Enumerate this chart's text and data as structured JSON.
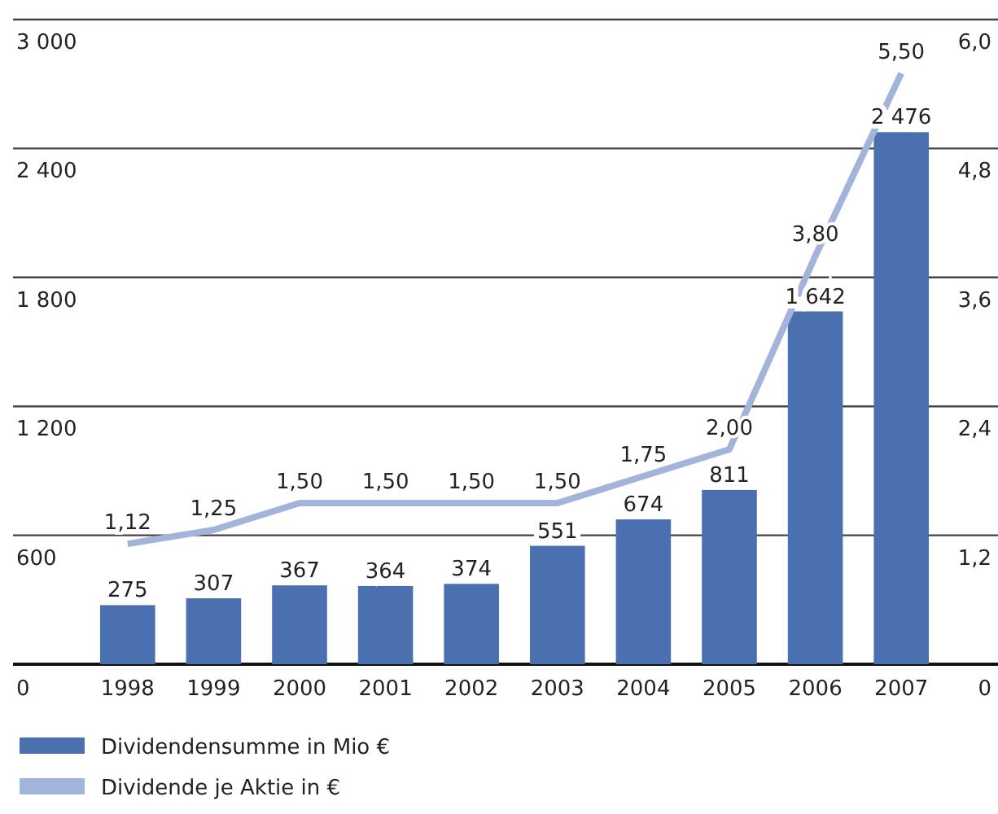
{
  "chart_data": {
    "type": "bar",
    "categories": [
      "1998",
      "1999",
      "2000",
      "2001",
      "2002",
      "2003",
      "2004",
      "2005",
      "2006",
      "2007"
    ],
    "series": [
      {
        "name": "Dividendensumme in Mio €",
        "color": "#4a70b0",
        "values": [
          275,
          307,
          367,
          364,
          374,
          551,
          674,
          811,
          1642,
          2476
        ],
        "value_labels": [
          "275",
          "307",
          "367",
          "364",
          "374",
          "551",
          "674",
          "811",
          "1 642",
          "2 476"
        ]
      },
      {
        "name": "Dividende je Aktie in €",
        "type": "line",
        "axis": "y2",
        "color": "#a3b4db",
        "values": [
          1.12,
          1.25,
          1.5,
          1.5,
          1.5,
          1.5,
          1.75,
          2.0,
          3.8,
          5.5
        ],
        "value_labels": [
          "1,12",
          "1,25",
          "1,50",
          "1,50",
          "1,50",
          "1,50",
          "1,75",
          "2,00",
          "3,80",
          "5,50"
        ]
      }
    ],
    "ylim": [
      0,
      3000
    ],
    "yticks": [
      {
        "value": 0,
        "label": "0"
      },
      {
        "value": 600,
        "label": "600"
      },
      {
        "value": 1200,
        "label": "1 200"
      },
      {
        "value": 1800,
        "label": "1 800"
      },
      {
        "value": 2400,
        "label": "2 400"
      },
      {
        "value": 3000,
        "label": "3 000"
      }
    ],
    "y2lim": [
      0,
      6
    ],
    "y2ticks": [
      {
        "value": 0,
        "label": "0"
      },
      {
        "value": 1.2,
        "label": "1,2"
      },
      {
        "value": 2.4,
        "label": "2,4"
      },
      {
        "value": 3.6,
        "label": "3,6"
      },
      {
        "value": 4.8,
        "label": "4,8"
      },
      {
        "value": 6,
        "label": "6,0"
      }
    ],
    "grid": "y",
    "legend": "bottom",
    "marker": "none"
  }
}
